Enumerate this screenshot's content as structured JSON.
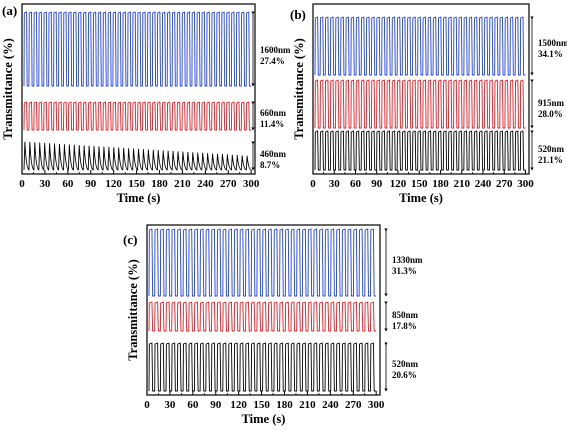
{
  "figure": {
    "background": "#ffffff",
    "axis_color": "#000000"
  },
  "chart_data": [
    {
      "type": "line",
      "panel_label": "(a)",
      "xlabel": "Time (s)",
      "ylabel": "Transmittance (%)",
      "xlim": [
        0,
        305
      ],
      "xticks": [
        0,
        30,
        60,
        90,
        120,
        150,
        180,
        210,
        240,
        270,
        300
      ],
      "grid": false,
      "series": [
        {
          "wavelength": "1600nm",
          "modulation": "27.4%",
          "color": "#1f3fe0",
          "cycles": 46,
          "waveform": "square-like switching"
        },
        {
          "wavelength": "660nm",
          "modulation": "11.4%",
          "color": "#e01b24",
          "cycles": 46,
          "waveform": "square-like switching"
        },
        {
          "wavelength": "460nm",
          "modulation": "8.7%",
          "color": "#000000",
          "cycles": 46,
          "waveform": "decaying spikes, amplitude decreasing over time"
        }
      ]
    },
    {
      "type": "line",
      "panel_label": "(b)",
      "xlabel": "Time (s)",
      "ylabel": "Transmittance (%)",
      "xlim": [
        0,
        305
      ],
      "xticks": [
        0,
        30,
        60,
        90,
        120,
        150,
        180,
        210,
        240,
        270,
        300
      ],
      "grid": false,
      "series": [
        {
          "wavelength": "1500nm",
          "modulation": "34.1%",
          "color": "#1f3fe0",
          "cycles": 41,
          "waveform": "square-like switching"
        },
        {
          "wavelength": "915nm",
          "modulation": "28.0%",
          "color": "#e01b24",
          "cycles": 41,
          "waveform": "square-like switching"
        },
        {
          "wavelength": "520nm",
          "modulation": "21.1%",
          "color": "#000000",
          "cycles": 41,
          "waveform": "square-like switching"
        }
      ]
    },
    {
      "type": "line",
      "panel_label": "(c)",
      "xlabel": "Time (s)",
      "ylabel": "Transmittance (%)",
      "xlim": [
        0,
        305
      ],
      "xticks": [
        0,
        30,
        60,
        90,
        120,
        150,
        180,
        210,
        240,
        270,
        300
      ],
      "grid": false,
      "series": [
        {
          "wavelength": "1330nm",
          "modulation": "31.3%",
          "color": "#1f3fe0",
          "cycles": 40,
          "waveform": "square-like switching"
        },
        {
          "wavelength": "850nm",
          "modulation": "17.8%",
          "color": "#e01b24",
          "cycles": 40,
          "waveform": "square-like switching"
        },
        {
          "wavelength": "520nm",
          "modulation": "20.6%",
          "color": "#000000",
          "cycles": 40,
          "waveform": "square-like switching"
        }
      ]
    }
  ]
}
